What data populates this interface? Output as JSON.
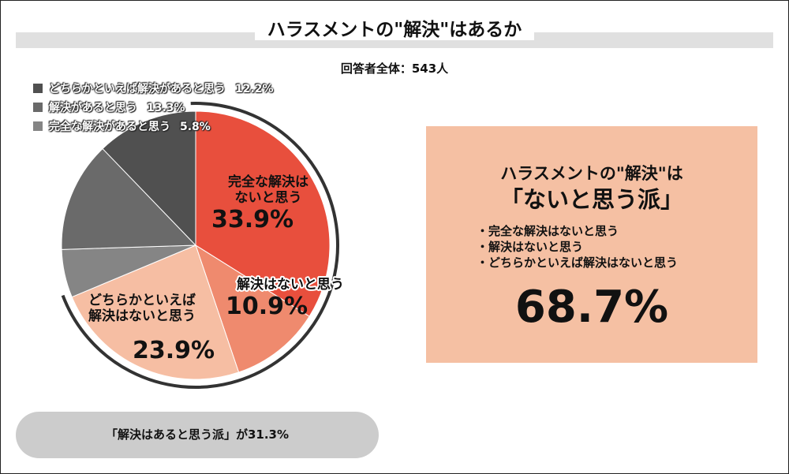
{
  "title": "ハラスメントの\"解決\"はあるか",
  "total_label": "回答者全体：543人",
  "legend": [
    {
      "label": "どちらかといえば解決があると思う",
      "value": "12.2%",
      "color": "#505050"
    },
    {
      "label": "解決があると思う",
      "value": "13.3%",
      "color": "#6a6a6a"
    },
    {
      "label": "完全な解決があると思う",
      "value": "5.8%",
      "color": "#858585"
    }
  ],
  "chart_data": {
    "type": "pie",
    "title": "",
    "slices": [
      {
        "label": "完全な解決はないと思う",
        "value": 33.9,
        "color": "#e84f3d"
      },
      {
        "label": "解決はないと思う",
        "value": 10.9,
        "color": "#ef8a6e"
      },
      {
        "label": "どちらかといえば解決はないと思う",
        "value": 23.9,
        "color": "#f6bea3"
      },
      {
        "label": "完全な解決があると思う",
        "value": 5.8,
        "color": "#858585"
      },
      {
        "label": "解決があると思う",
        "value": 13.3,
        "color": "#6a6a6a"
      },
      {
        "label": "どちらかといえば解決があると思う",
        "value": 12.2,
        "color": "#505050"
      }
    ],
    "labels": [
      {
        "lines": [
          "完全な解決は",
          "ないと思う"
        ],
        "value": "33.9%"
      },
      {
        "lines": [
          "解決はないと思う"
        ],
        "value": "10.9%"
      },
      {
        "lines": [
          "どちらかといえば",
          "解決はないと思う"
        ],
        "value": "23.9%"
      }
    ]
  },
  "summary_box": {
    "title_line1": "ハラスメントの\"解決\"は",
    "title_line2": "「ないと思う派」",
    "items": [
      "・完全な解決はないと思う",
      "・解決はないと思う",
      "・どちらかといえば解決はないと思う"
    ],
    "total": "68.7%",
    "color": "#f5c0a3"
  },
  "bottom_note": "「解決はあると思う派」が31.3%"
}
